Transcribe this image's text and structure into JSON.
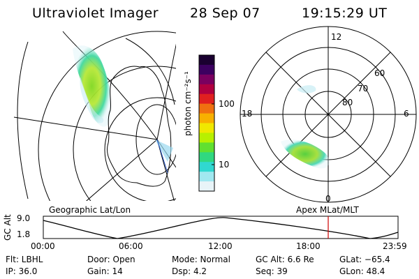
{
  "header": {
    "title": "Ultraviolet Imager",
    "date": "28 Sep 07",
    "time": "19:15:29 UT"
  },
  "geo_panel": {
    "label": "Geographic Lat/Lon"
  },
  "colorbar": {
    "label": "photon cm⁻²s⁻¹",
    "ticks": [
      "100",
      "10"
    ],
    "colors": [
      "#1a0030",
      "#3c0060",
      "#7a0060",
      "#b00040",
      "#e02020",
      "#f07010",
      "#f8b000",
      "#f0e800",
      "#b8f000",
      "#60e030",
      "#30d880",
      "#30d8d0",
      "#a0e8f0",
      "#e8f4f8"
    ]
  },
  "polar_panel": {
    "label": "Apex MLat/MLT",
    "mlt_labels": {
      "top": "12",
      "left": "18",
      "right": "6",
      "bottom": "0"
    },
    "lat_labels": [
      "60",
      "70",
      "80"
    ]
  },
  "timeline": {
    "y_label": "GC Alt",
    "y_ticks": [
      "9.0",
      "1.8"
    ],
    "x_ticks": [
      "00:00",
      "06:00",
      "12:00",
      "18:00",
      "23:59"
    ],
    "marker_color": "#d00000"
  },
  "footer": {
    "flt": "Flt: LBHL",
    "ip": "IP: 36.0",
    "door": "Door: Open",
    "gain": "Gain: 14",
    "mode": "Mode: Normal",
    "dsp": "Dsp:     4.2",
    "gcalt": "GC Alt: 6.6 Re",
    "seq": "Seq: 39",
    "glat": "GLat:  −65.4",
    "glon": "GLon:   48.4"
  }
}
